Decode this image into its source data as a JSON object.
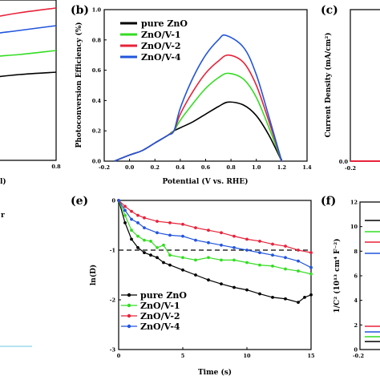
{
  "chart_data": [
    {
      "panel": "a",
      "type": "line",
      "xlabel_visible_fragment": "l)",
      "x_ticks": [
        "0.4",
        "0.6",
        "0.8"
      ],
      "xlim": [
        0.3,
        0.8
      ],
      "ylim": [
        0,
        1
      ],
      "series": [
        {
          "color": "#e8223a",
          "x": [
            0.3,
            0.4,
            0.5,
            0.6,
            0.7,
            0.8
          ],
          "y": [
            0.74,
            0.79,
            0.84,
            0.88,
            0.92,
            0.95
          ]
        },
        {
          "color": "#2255dd",
          "x": [
            0.3,
            0.4,
            0.5,
            0.6,
            0.7,
            0.8
          ],
          "y": [
            0.64,
            0.69,
            0.74,
            0.78,
            0.81,
            0.84
          ]
        },
        {
          "color": "#33dd22",
          "x": [
            0.3,
            0.4,
            0.5,
            0.6,
            0.7,
            0.8
          ],
          "y": [
            0.5,
            0.55,
            0.6,
            0.64,
            0.66,
            0.685
          ]
        },
        {
          "color": "#000000",
          "x": [
            0.3,
            0.4,
            0.5,
            0.6,
            0.7,
            0.8
          ],
          "y": [
            0.38,
            0.43,
            0.48,
            0.51,
            0.535,
            0.55
          ]
        }
      ]
    },
    {
      "panel": "b",
      "type": "line",
      "xlabel": "Potential (V vs. RHE)",
      "ylabel": "Photoconversion Efficiency (%)",
      "xlim": [
        -0.2,
        1.4
      ],
      "ylim": [
        0,
        1.0
      ],
      "x_ticks": [
        "-0.2",
        "0.0",
        "0.2",
        "0.4",
        "0.6",
        "0.8",
        "1.0",
        "1.2",
        "1.4"
      ],
      "y_ticks": [
        "0.0",
        "0.2",
        "0.4",
        "0.6",
        "0.8",
        "1.0"
      ],
      "legend": [
        "pure ZnO",
        "ZnO/V-1",
        "ZnO/V-2",
        "ZnO/V-4"
      ],
      "legend_position": "top-left",
      "series": [
        {
          "name": "pure ZnO",
          "color": "#000000",
          "peak": 0.39,
          "x": [
            -0.12,
            0.0,
            0.1,
            0.2,
            0.3,
            0.35,
            0.4,
            0.5,
            0.6,
            0.7,
            0.78,
            0.9,
            1.0,
            1.1,
            1.2
          ],
          "y": [
            0.0,
            0.04,
            0.07,
            0.12,
            0.17,
            0.2,
            0.22,
            0.26,
            0.31,
            0.36,
            0.39,
            0.37,
            0.3,
            0.17,
            0.0
          ]
        },
        {
          "name": "ZnO/V-1",
          "color": "#33dd22",
          "peak": 0.58,
          "x": [
            -0.12,
            0.0,
            0.1,
            0.2,
            0.3,
            0.35,
            0.4,
            0.5,
            0.6,
            0.7,
            0.78,
            0.9,
            1.0,
            1.1,
            1.2
          ],
          "y": [
            0.0,
            0.04,
            0.07,
            0.12,
            0.17,
            0.2,
            0.27,
            0.38,
            0.48,
            0.55,
            0.58,
            0.54,
            0.42,
            0.22,
            0.0
          ]
        },
        {
          "name": "ZnO/V-2",
          "color": "#e8223a",
          "peak": 0.7,
          "x": [
            -0.12,
            0.0,
            0.1,
            0.2,
            0.3,
            0.35,
            0.4,
            0.5,
            0.6,
            0.7,
            0.78,
            0.9,
            1.0,
            1.1,
            1.2
          ],
          "y": [
            0.0,
            0.04,
            0.07,
            0.12,
            0.17,
            0.2,
            0.31,
            0.46,
            0.58,
            0.66,
            0.7,
            0.65,
            0.5,
            0.26,
            0.0
          ]
        },
        {
          "name": "ZnO/V-4",
          "color": "#2255dd",
          "peak": 0.83,
          "x": [
            -0.12,
            0.0,
            0.1,
            0.2,
            0.3,
            0.35,
            0.4,
            0.5,
            0.6,
            0.7,
            0.76,
            0.9,
            1.0,
            1.1,
            1.2
          ],
          "y": [
            0.0,
            0.04,
            0.07,
            0.12,
            0.17,
            0.2,
            0.35,
            0.55,
            0.7,
            0.8,
            0.83,
            0.75,
            0.57,
            0.29,
            0.0
          ]
        }
      ]
    },
    {
      "panel": "c",
      "type": "line",
      "ylabel": "Current Density (mA/cm²)",
      "x_ticks": [
        "-0.2"
      ],
      "y_ticks": [
        "0.0"
      ]
    },
    {
      "panel": "e",
      "type": "scatter",
      "xlabel": "Time (s)",
      "ylabel": "ln(D)",
      "xlim": [
        0,
        15
      ],
      "ylim": [
        -3,
        0
      ],
      "x_ticks": [
        "0",
        "5",
        "10",
        "15"
      ],
      "y_ticks": [
        "0",
        "-1",
        "-2",
        "-3"
      ],
      "reference_line_y": -1,
      "legend": [
        "pure ZnO",
        "ZnO/V-1",
        "ZnO/V-2",
        "ZnO/V-4"
      ],
      "legend_position": "bottom-left",
      "series": [
        {
          "name": "pure ZnO",
          "color": "#000000",
          "x": [
            0,
            0.5,
            1,
            1.5,
            2,
            2.5,
            3,
            3.5,
            4,
            5,
            6,
            7,
            8,
            9,
            10,
            11,
            12,
            13,
            14,
            14.5,
            15
          ],
          "y": [
            0,
            -0.45,
            -0.78,
            -0.95,
            -1.05,
            -1.1,
            -1.15,
            -1.25,
            -1.3,
            -1.4,
            -1.5,
            -1.6,
            -1.68,
            -1.75,
            -1.8,
            -1.88,
            -1.95,
            -1.98,
            -2.05,
            -1.95,
            -1.9
          ]
        },
        {
          "name": "ZnO/V-1",
          "color": "#33dd22",
          "x": [
            0,
            0.5,
            1,
            1.5,
            2,
            2.5,
            3,
            3.5,
            4,
            5,
            6,
            7,
            8,
            9,
            10,
            11,
            12,
            13,
            14,
            15
          ],
          "y": [
            0,
            -0.3,
            -0.6,
            -0.72,
            -0.8,
            -0.82,
            -0.95,
            -0.9,
            -1.1,
            -1.15,
            -1.2,
            -1.15,
            -1.2,
            -1.2,
            -1.25,
            -1.3,
            -1.32,
            -1.38,
            -1.42,
            -1.48
          ]
        },
        {
          "name": "ZnO/V-2",
          "color": "#e8223a",
          "x": [
            0,
            0.5,
            1,
            1.5,
            2,
            3,
            4,
            5,
            6,
            7,
            8,
            9,
            10,
            11,
            12,
            13,
            14,
            15
          ],
          "y": [
            0,
            -0.12,
            -0.22,
            -0.3,
            -0.35,
            -0.42,
            -0.45,
            -0.48,
            -0.55,
            -0.6,
            -0.65,
            -0.72,
            -0.78,
            -0.82,
            -0.88,
            -0.92,
            -1.0,
            -1.05
          ]
        },
        {
          "name": "ZnO/V-4",
          "color": "#2255dd",
          "x": [
            0,
            0.5,
            1,
            1.5,
            2,
            3,
            4,
            5,
            6,
            7,
            8,
            9,
            10,
            11,
            12,
            13,
            14,
            15
          ],
          "y": [
            0,
            -0.2,
            -0.38,
            -0.45,
            -0.55,
            -0.65,
            -0.7,
            -0.72,
            -0.8,
            -0.85,
            -0.9,
            -0.95,
            -1.0,
            -1.05,
            -1.1,
            -1.15,
            -1.22,
            -1.35
          ]
        }
      ]
    },
    {
      "panel": "f",
      "type": "line",
      "ylabel": "1/C² (10¹³ cm⁴ F⁻²)",
      "y_ticks": [
        "0",
        "2",
        "4",
        "6",
        "8",
        "10",
        "12"
      ],
      "x_ticks": [
        "-0.2"
      ]
    }
  ],
  "panel_b": {
    "label": "(b)",
    "xlabel": "Potential (V vs. RHE)",
    "ylabel": "Photoconversion Efficiency (%)",
    "x_ticks": [
      "-0.2",
      "0.0",
      "0.2",
      "0.4",
      "0.6",
      "0.8",
      "1.0",
      "1.2",
      "1.4"
    ],
    "y_ticks": [
      "0.0",
      "0.2",
      "0.4",
      "0.6",
      "0.8",
      "1.0"
    ],
    "legend": [
      "pure ZnO",
      "ZnO/V-1",
      "ZnO/V-2",
      "ZnO/V-4"
    ]
  },
  "panel_c": {
    "label": "(c)",
    "ylabel": "Current Density (mA/cm²)",
    "x_tick": "-0.2",
    "y_tick": "0.0"
  },
  "panel_a": {
    "x_ticks": [
      "0.4",
      "0.6",
      "0.8"
    ],
    "xlabel_fragment": "l)",
    "text_fragment": "r"
  },
  "panel_e": {
    "label": "(e)",
    "xlabel": "Time (s)",
    "ylabel": "ln(D)",
    "x_ticks": [
      "0",
      "5",
      "10",
      "15"
    ],
    "y_ticks": [
      "0",
      "-1",
      "-2",
      "-3"
    ],
    "legend": [
      "pure ZnO",
      "ZnO/V-1",
      "ZnO/V-2",
      "ZnO/V-4"
    ]
  },
  "panel_f": {
    "label": "(f)",
    "ylabel": "1/C² (10¹³ cm⁴ F⁻²)",
    "y_ticks": [
      "0",
      "2",
      "4",
      "6",
      "8",
      "10",
      "12"
    ],
    "x_tick": "-0.2"
  },
  "colors": {
    "pure": "#000000",
    "v1": "#33dd22",
    "v2": "#e8223a",
    "v4": "#2255dd"
  }
}
